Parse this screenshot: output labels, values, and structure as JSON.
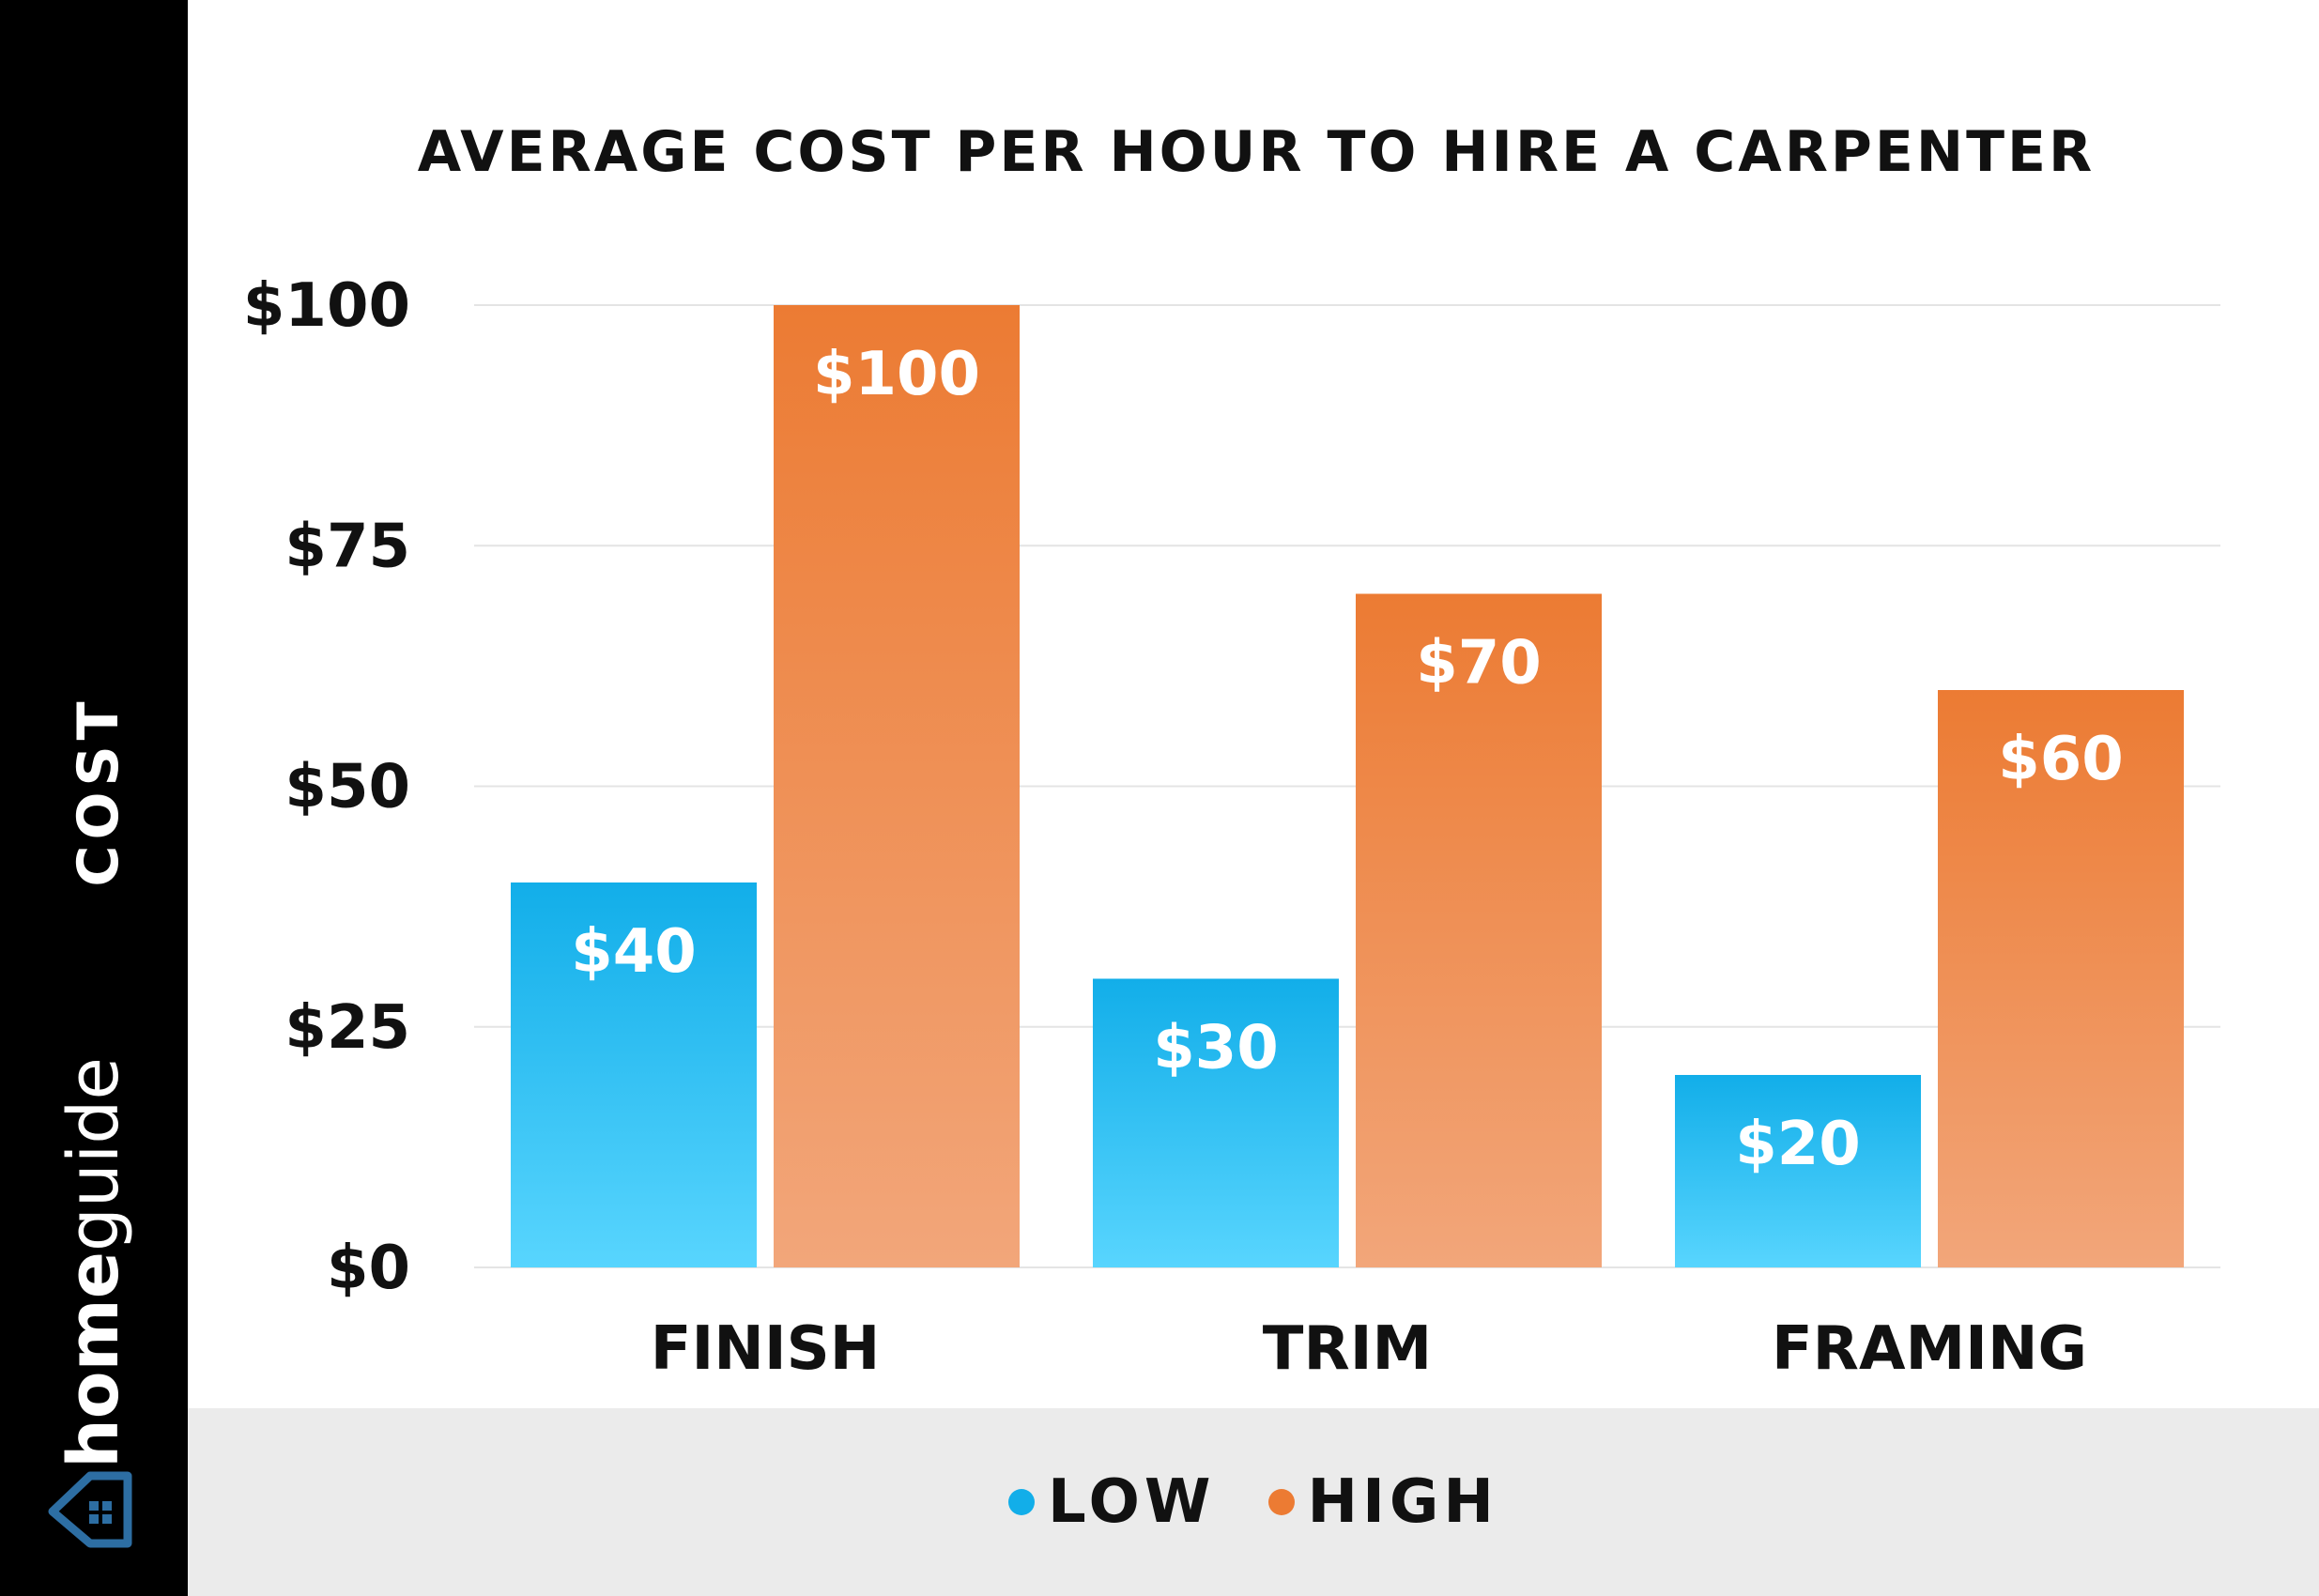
{
  "chart_data": {
    "type": "bar",
    "title": "AVERAGE COST PER HOUR TO HIRE A CARPENTER",
    "ylabel": "COST",
    "xlabel": "",
    "categories": [
      "FINISH",
      "TRIM",
      "FRAMING"
    ],
    "series": [
      {
        "name": "LOW",
        "values": [
          40,
          30,
          20
        ],
        "labels": [
          "$40",
          "$30",
          "$20"
        ],
        "color": "#12aee9"
      },
      {
        "name": "HIGH",
        "values": [
          100,
          70,
          60
        ],
        "labels": [
          "$100",
          "$70",
          "$60"
        ],
        "color": "#ec7b33"
      }
    ],
    "ylim": [
      0,
      100
    ],
    "yticks": [
      0,
      25,
      50,
      75,
      100
    ],
    "ytick_labels": [
      "$0",
      "$25",
      "$50",
      "$75",
      "$100"
    ],
    "grid": true,
    "legend": "bottom-center"
  },
  "brand": {
    "name_part1": "home",
    "name_part2": "guide",
    "logo_icon": "house-icon",
    "colors": {
      "sidebar": "#000000",
      "logo_blue": "#2d6ea3",
      "legend_bg": "#ebebeb"
    }
  }
}
